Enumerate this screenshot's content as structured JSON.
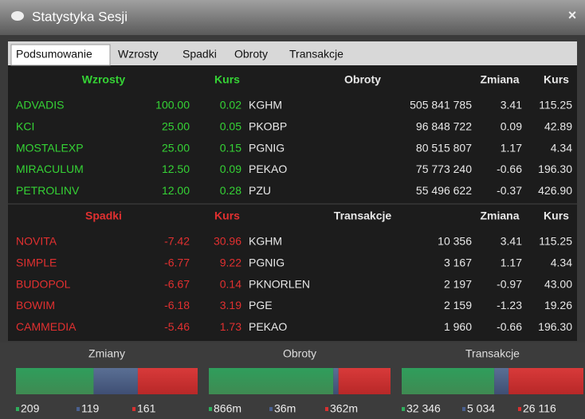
{
  "title": "Statystyka Sesji",
  "close": "×",
  "tabs": [
    "Podsumowanie",
    "Wzrosty",
    "Spadki",
    "Obroty",
    "Transakcje"
  ],
  "sections": [
    {
      "headers": [
        "Wzrosty",
        "Kurs",
        "Obroty",
        "Zmiana",
        "Kurs"
      ],
      "rows": [
        [
          "ADVADIS",
          "100.00",
          "0.02",
          "KGHM",
          "505 841 785",
          "3.41",
          "115.25"
        ],
        [
          "KCI",
          "25.00",
          "0.05",
          "PKOBP",
          "96 848 722",
          "0.09",
          "42.89"
        ],
        [
          "MOSTALEXP",
          "25.00",
          "0.15",
          "PGNIG",
          "80 515 807",
          "1.17",
          "4.34"
        ],
        [
          "MIRACULUM",
          "12.50",
          "0.09",
          "PEKAO",
          "75 773 240",
          "-0.66",
          "196.30"
        ],
        [
          "PETROLINV",
          "12.00",
          "0.28",
          "PZU",
          "55 496 622",
          "-0.37",
          "426.90"
        ]
      ]
    },
    {
      "headers": [
        "Spadki",
        "Kurs",
        "Transakcje",
        "Zmiana",
        "Kurs"
      ],
      "rows": [
        [
          "NOVITA",
          "-7.42",
          "30.96",
          "KGHM",
          "10 356",
          "3.41",
          "115.25"
        ],
        [
          "SIMPLE",
          "-6.77",
          "9.22",
          "PGNIG",
          "3 167",
          "1.17",
          "4.34"
        ],
        [
          "BUDOPOL",
          "-6.67",
          "0.14",
          "PKNORLEN",
          "2 197",
          "-0.97",
          "43.00"
        ],
        [
          "BOWIM",
          "-6.18",
          "3.19",
          "PGE",
          "2 159",
          "-1.23",
          "19.26"
        ],
        [
          "CAMMEDIA",
          "-5.46",
          "1.73",
          "PEKAO",
          "1 960",
          "-0.66",
          "196.30"
        ]
      ]
    }
  ],
  "summary": [
    {
      "title": "Zmiany",
      "segments": [
        {
          "value": 209
        },
        {
          "value": 119
        },
        {
          "value": 161
        }
      ]
    },
    {
      "title": "Obroty",
      "segments": [
        {
          "value": 866,
          "label": "866m"
        },
        {
          "value": 36,
          "label": "36m"
        },
        {
          "value": 362,
          "label": "362m"
        }
      ]
    },
    {
      "title": "Transakcje",
      "segments": [
        {
          "value": 32346,
          "label": "32 346"
        },
        {
          "value": 5034,
          "label": "5 034"
        },
        {
          "value": 26116,
          "label": "26 116"
        }
      ]
    }
  ]
}
